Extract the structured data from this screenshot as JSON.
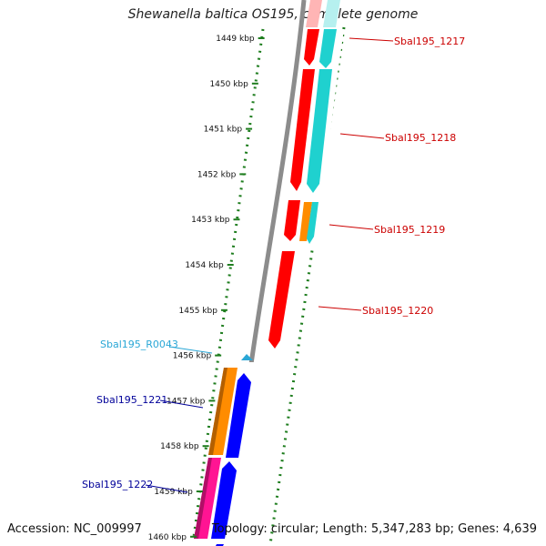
{
  "title": "Shewanella baltica OS195, complete genome",
  "accession": "Accession: NC_009997",
  "topology": "Topology: circular; Length: 5,347,283 bp; Genes: 4,639",
  "colors": {
    "backbone": "#8c8c8c",
    "ruler": "#1e7d1e",
    "red_gene": "#ff0000",
    "cyan_gene": "#1fd1cf",
    "blue_gene": "#0000ff",
    "orange_gene": "#ff8c00",
    "pink_gene": "#ff1493",
    "rna_label": "#2aa7d6",
    "top_strand_label": "#cc0000",
    "bottom_strand_label": "#000099"
  },
  "ruler_ticks": [
    "1449 kbp",
    "1450 kbp",
    "1451 kbp",
    "1452 kbp",
    "1453 kbp",
    "1454 kbp",
    "1455 kbp",
    "1456 kbp",
    "1457 kbp",
    "1458 kbp",
    "1459 kbp",
    "1460 kbp"
  ],
  "gene_labels": [
    "Sbal195_1217",
    "Sbal195_1218",
    "Sbal195_1219",
    "Sbal195_1220",
    "Sbal195_R0043",
    "Sbal195_1221",
    "Sbal195_1222"
  ]
}
